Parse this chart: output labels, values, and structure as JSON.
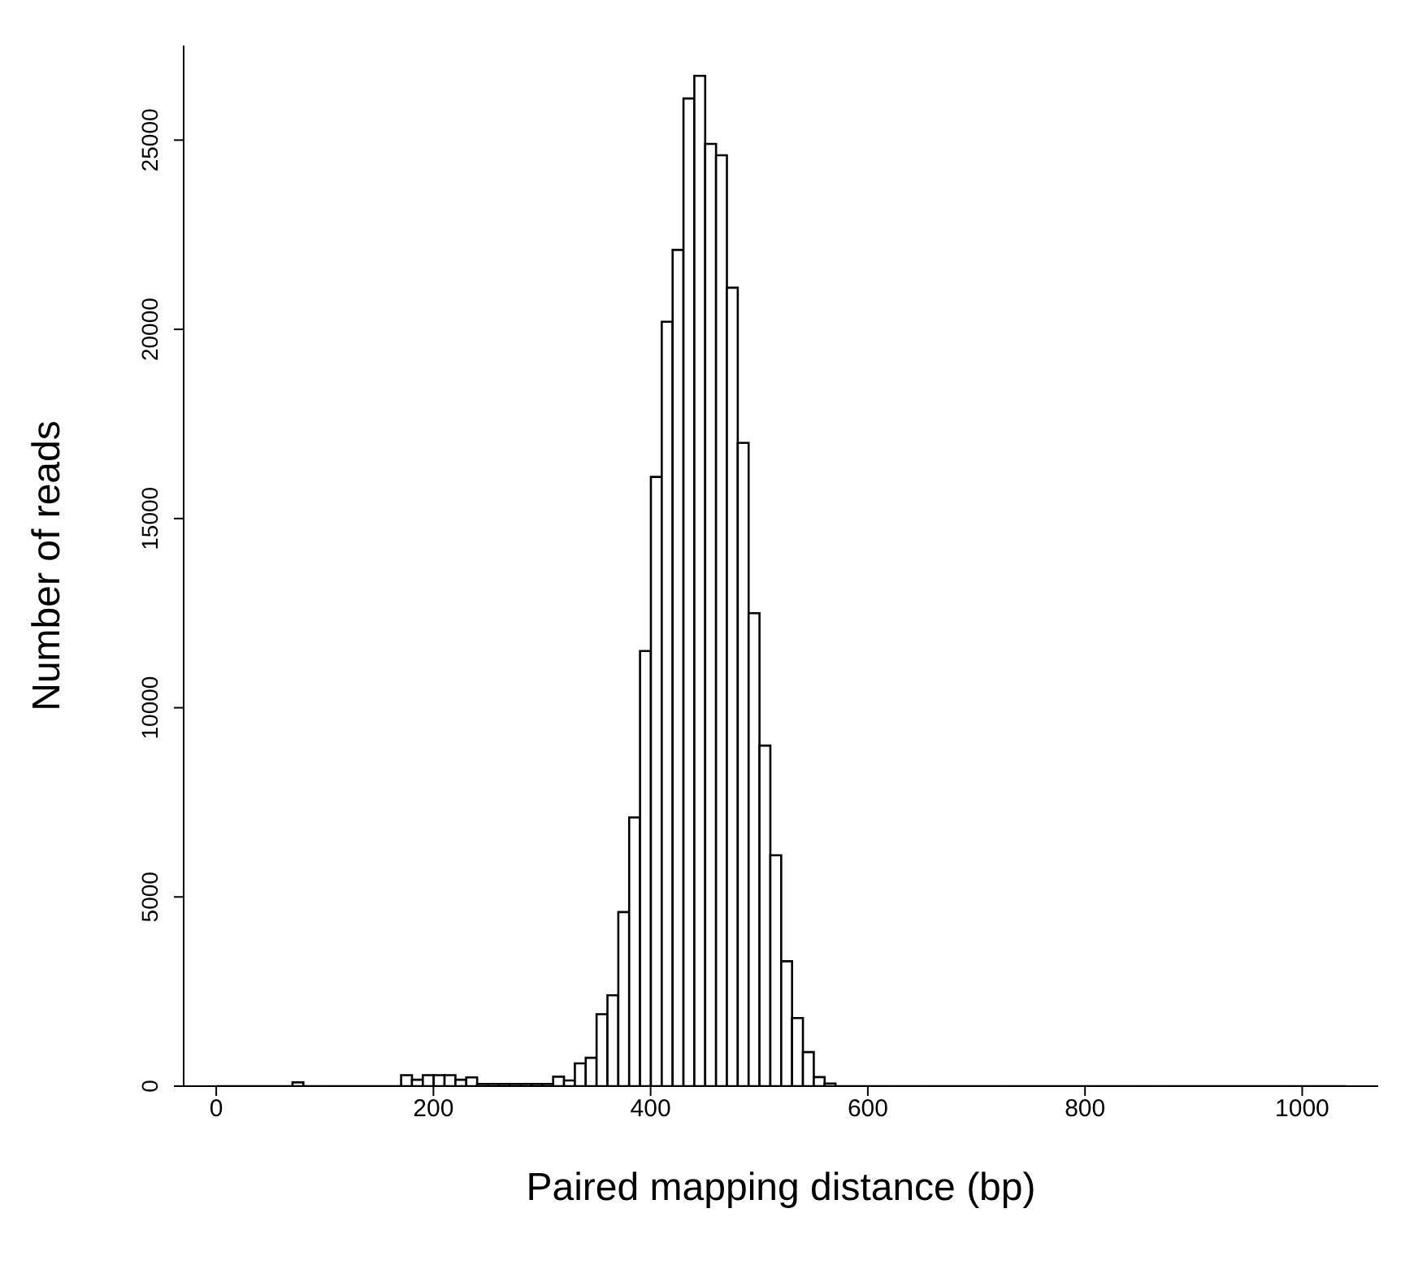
{
  "chart_data": {
    "type": "histogram",
    "xlabel": "Paired mapping distance (bp)",
    "ylabel": "Number of reads",
    "color": "#000000",
    "bins": [
      0,
      10,
      20,
      30,
      40,
      50,
      60,
      70,
      80,
      90,
      100,
      110,
      120,
      130,
      140,
      150,
      160,
      170,
      180,
      190,
      200,
      210,
      220,
      230,
      240,
      250,
      260,
      270,
      280,
      290,
      300,
      310,
      320,
      330,
      340,
      350,
      360,
      370,
      380,
      390,
      400,
      410,
      420,
      430,
      440,
      450,
      460,
      470,
      480,
      490,
      500,
      510,
      520,
      530,
      540,
      550,
      560,
      570,
      580,
      590,
      600,
      610,
      620,
      630,
      640,
      650,
      660,
      670,
      680,
      690,
      700,
      710,
      720,
      730,
      740,
      750,
      760,
      770,
      780,
      790,
      800,
      810,
      820,
      830,
      840,
      850,
      860,
      870,
      880,
      890,
      900,
      910,
      920,
      930,
      940,
      950,
      960,
      970,
      980,
      990,
      1000,
      1010,
      1020,
      1030,
      1040
    ],
    "values": [
      0,
      0,
      0,
      0,
      0,
      0,
      0,
      100,
      0,
      0,
      0,
      0,
      0,
      0,
      0,
      0,
      0,
      290,
      170,
      290,
      290,
      290,
      170,
      230,
      60,
      60,
      60,
      60,
      60,
      60,
      60,
      250,
      150,
      600,
      750,
      1900,
      2400,
      4600,
      7100,
      11500,
      16100,
      20200,
      22100,
      26100,
      26700,
      24900,
      24600,
      21100,
      17000,
      12500,
      9000,
      6100,
      3300,
      1800,
      900,
      240,
      70,
      0,
      0,
      0,
      0,
      0,
      0,
      0,
      0,
      0,
      0,
      0,
      0,
      0,
      0,
      0,
      0,
      0,
      0,
      0,
      0,
      0,
      0,
      0,
      0,
      0,
      0,
      0,
      0,
      0,
      0,
      0,
      0,
      0,
      0,
      0,
      0,
      0,
      0,
      0,
      0,
      0,
      0,
      0,
      0,
      0,
      0,
      0
    ],
    "xlim": [
      -30,
      1070
    ],
    "ylim": [
      0,
      27500
    ],
    "xticks": [
      0,
      200,
      400,
      600,
      800,
      1000
    ],
    "yticks": [
      0,
      5000,
      10000,
      15000,
      20000,
      25000
    ]
  }
}
